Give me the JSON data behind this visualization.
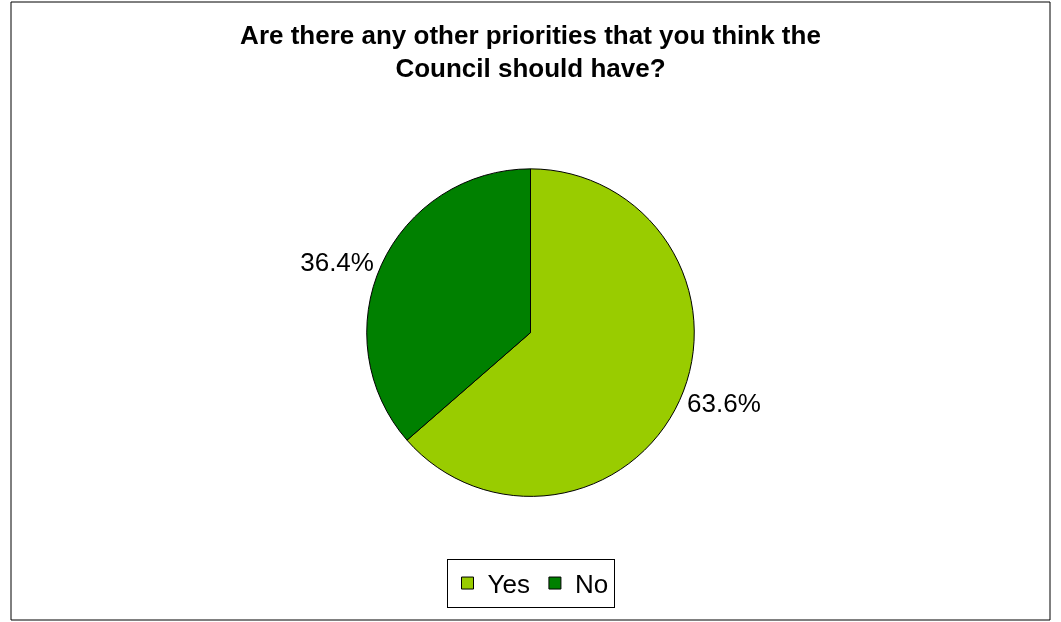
{
  "chart_data": {
    "type": "pie",
    "title": "Are there any other priorities that you think the Council should have?",
    "categories": [
      "Yes",
      "No"
    ],
    "values": [
      63.6,
      36.4
    ],
    "colors": [
      "#99cc00",
      "#008000"
    ],
    "value_labels": [
      "63.6%",
      "36.4%"
    ],
    "legend": "bottom"
  }
}
